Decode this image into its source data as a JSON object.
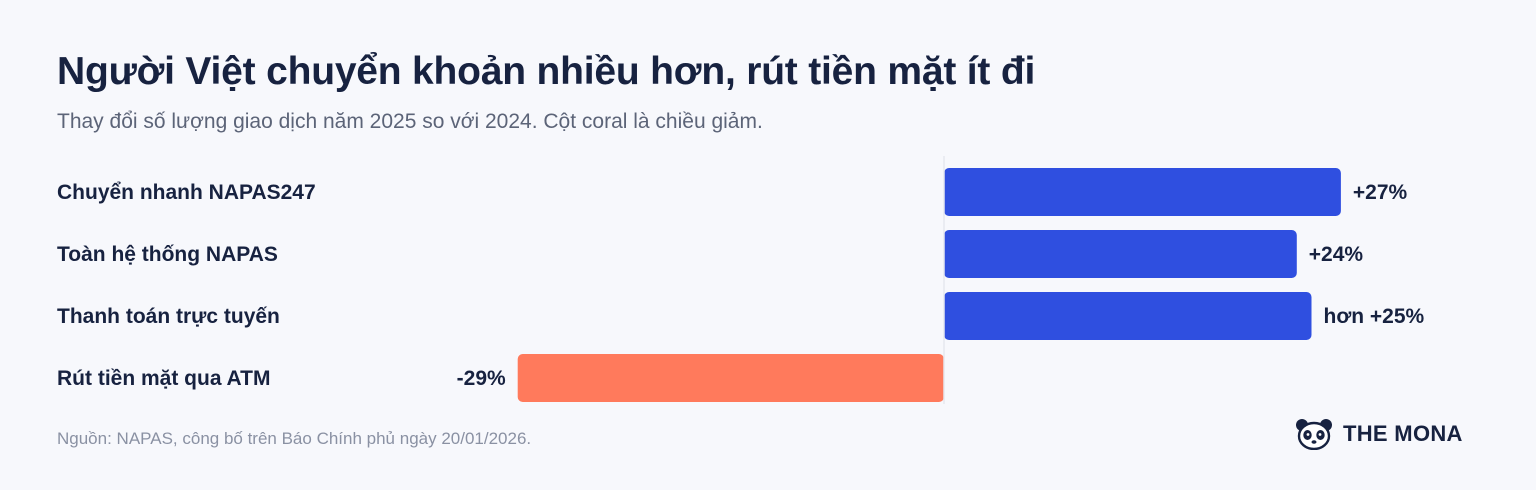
{
  "header": {
    "title": "Người Việt chuyển khoản nhiều hơn, rút tiền mặt ít đi",
    "subtitle": "Thay đổi số lượng giao dịch năm 2025 so với 2024. Cột coral là chiều giảm."
  },
  "chart_data": {
    "type": "bar",
    "orientation": "horizontal",
    "categories": [
      "Chuyển nhanh NAPAS247",
      "Toàn hệ thống NAPAS",
      "Thanh toán trực tuyến",
      "Rút tiền mặt qua ATM"
    ],
    "values": [
      27,
      24,
      25,
      -29
    ],
    "value_labels": [
      "+27%",
      "+24%",
      "hơn +25%",
      "-29%"
    ],
    "xlim": [
      -29,
      27
    ],
    "colors": {
      "positive": "#2f4fe0",
      "negative": "#ff7a5c"
    },
    "grid": false,
    "legend": "none"
  },
  "footer": {
    "source": "Nguồn: NAPAS, công bố trên Báo Chính phủ ngày 20/01/2026.",
    "brand": "THE MONA",
    "brand_icon": "panda-icon"
  }
}
